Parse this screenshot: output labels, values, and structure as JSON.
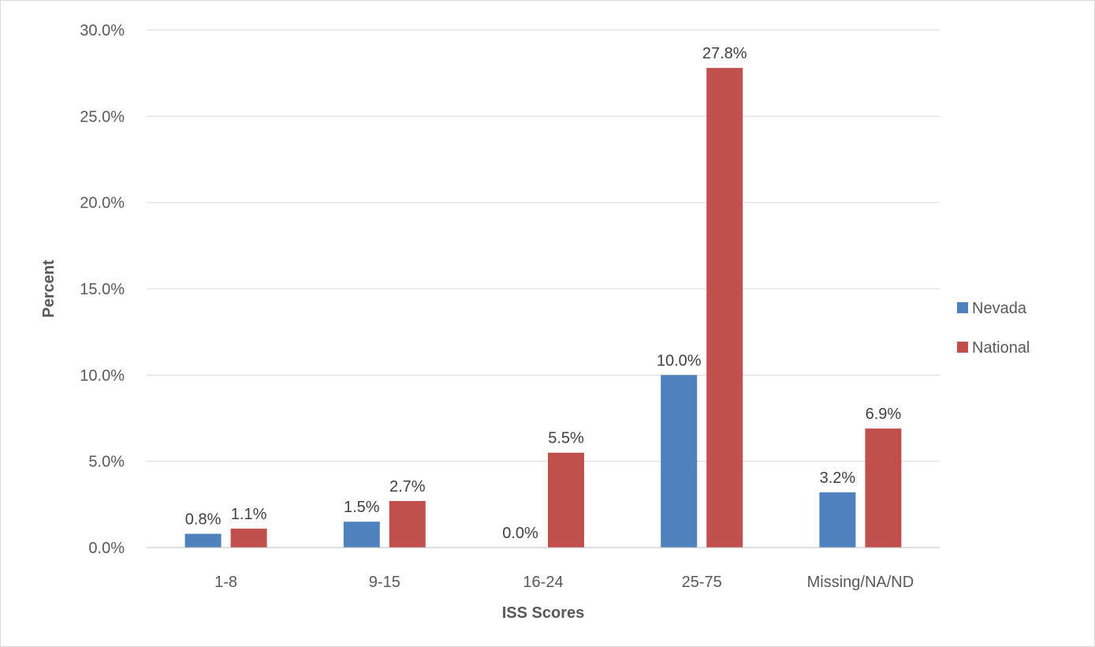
{
  "chart_data": {
    "type": "bar",
    "categories": [
      "1-8",
      "9-15",
      "16-24",
      "25-75",
      "Missing/NA/ND"
    ],
    "series": [
      {
        "name": "Nevada",
        "color": "#4f81bd",
        "values": [
          0.8,
          1.5,
          0.0,
          10.0,
          3.2
        ],
        "labels": [
          "0.8%",
          "1.5%",
          "0.0%",
          "10.0%",
          "3.2%"
        ]
      },
      {
        "name": "National",
        "color": "#c0504d",
        "values": [
          1.1,
          2.7,
          5.5,
          27.8,
          6.9
        ],
        "labels": [
          "1.1%",
          "2.7%",
          "5.5%",
          "27.8%",
          "6.9%"
        ]
      }
    ],
    "xlabel": "ISS Scores",
    "ylabel": "Percent",
    "ylim": [
      0,
      30
    ],
    "yticks": [
      0,
      5,
      10,
      15,
      20,
      25,
      30
    ],
    "ytick_labels": [
      "0.0%",
      "5.0%",
      "10.0%",
      "15.0%",
      "20.0%",
      "25.0%",
      "30.0%"
    ],
    "grid": true,
    "legend_position": "right"
  }
}
